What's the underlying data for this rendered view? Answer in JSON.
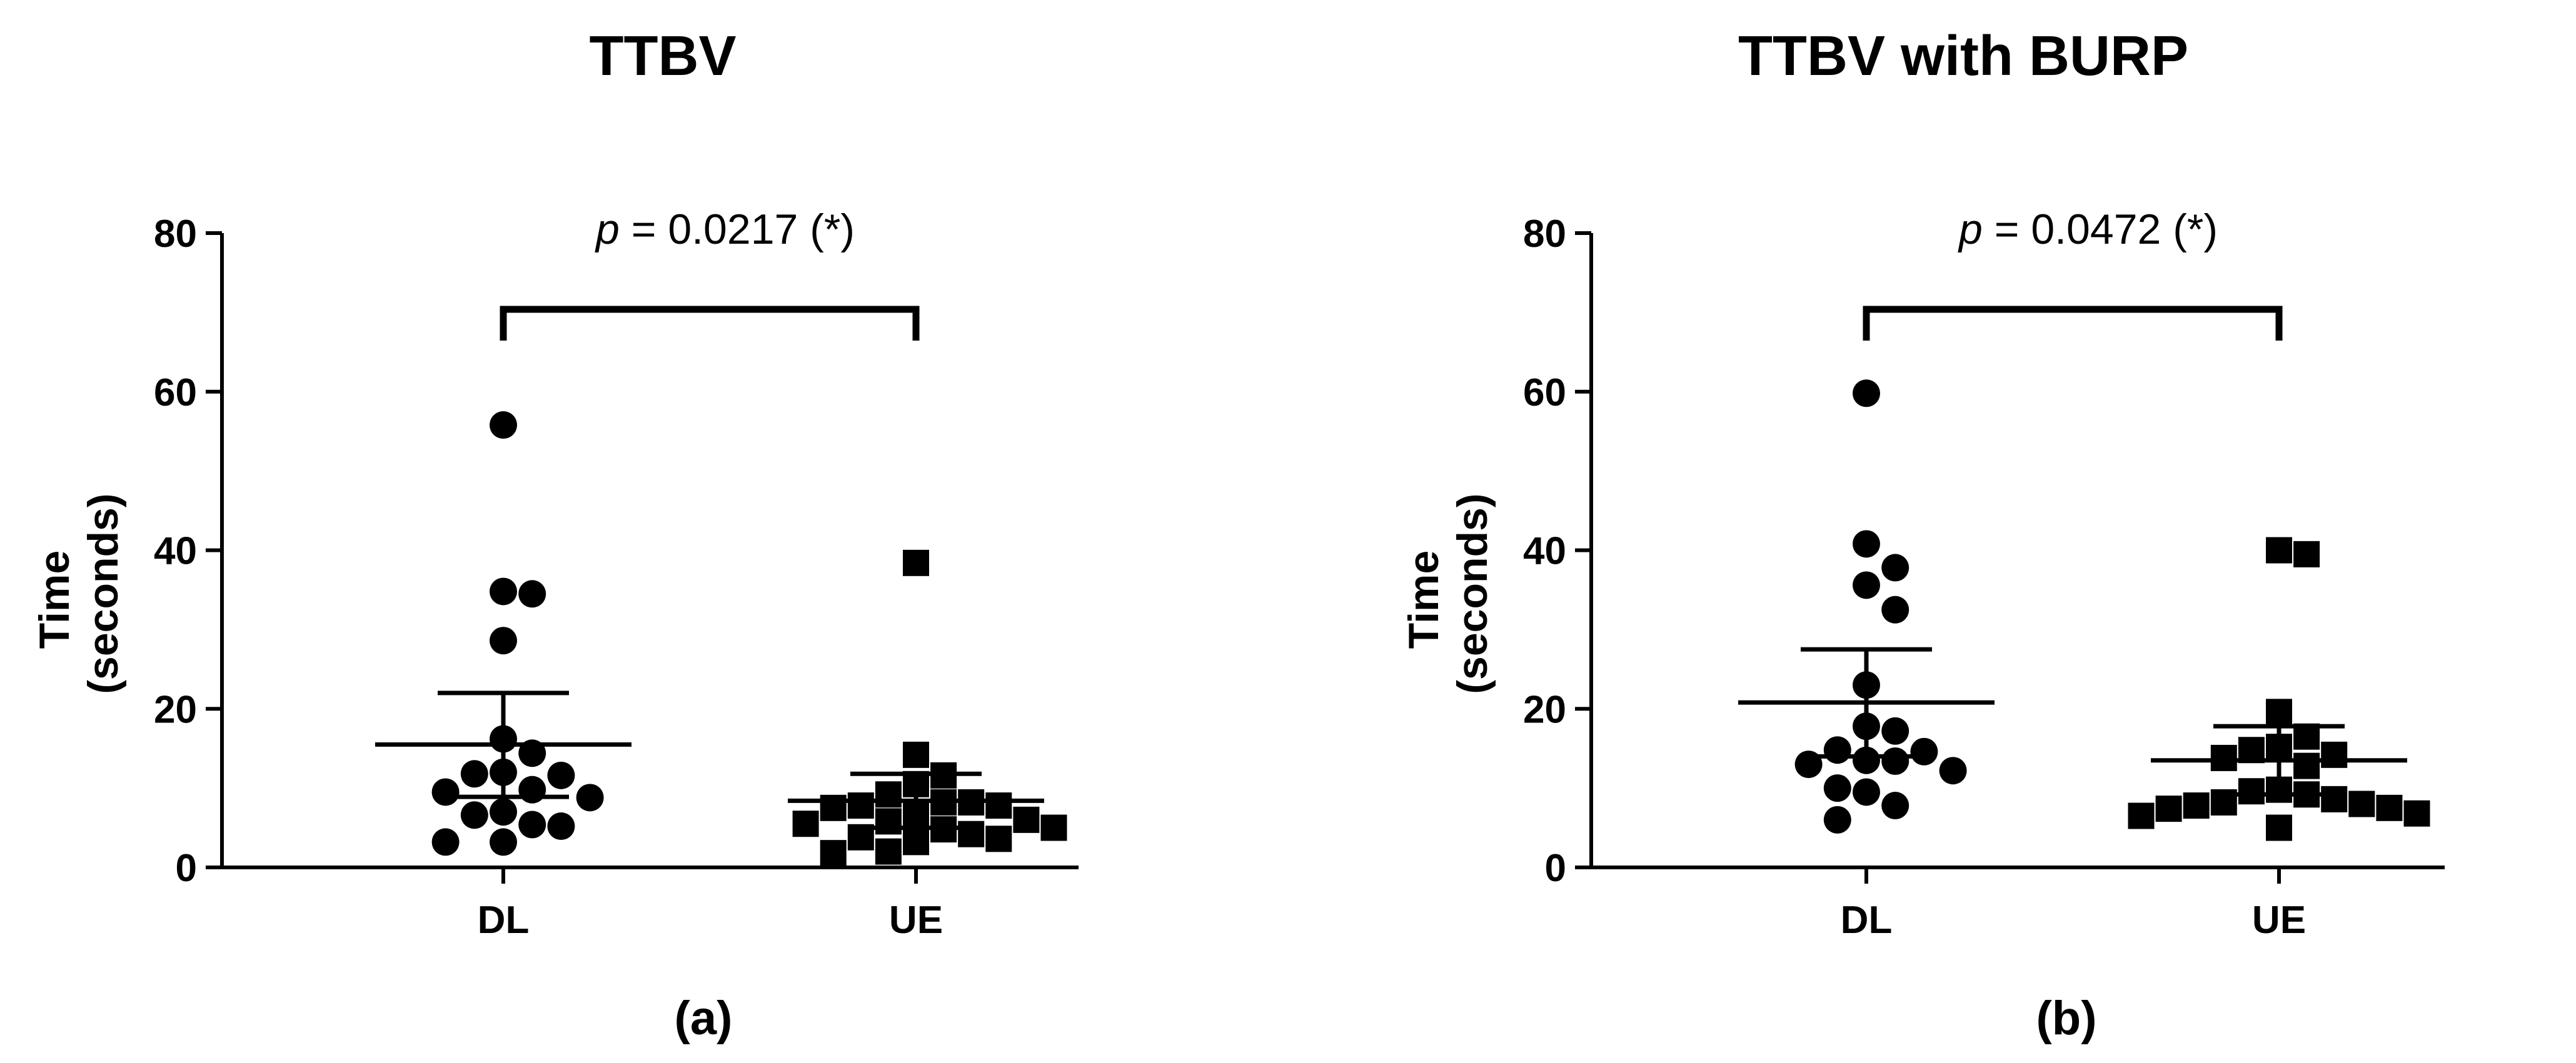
{
  "chart_data": [
    {
      "type": "scatter",
      "title": "TTBV",
      "subtitle": "(a)",
      "ylabel_line1": "Time",
      "ylabel_line2": "(seconds)",
      "categories": [
        "DL",
        "UE"
      ],
      "ylim": [
        0,
        80
      ],
      "yticks": [
        0,
        20,
        40,
        60,
        80
      ],
      "annotation": {
        "p_symbol": "p",
        "p_text": " = 0.0217 (*)"
      },
      "series": [
        {
          "category": "DL",
          "marker": "circle",
          "mean": 15.5,
          "error": [
            8.9,
            22.0
          ],
          "values": [
            55.8,
            34.8,
            34.5,
            28.6,
            16.2,
            14.4,
            12.0,
            11.6,
            11.8,
            9.8,
            9.5,
            8.8,
            7.0,
            6.6,
            5.4,
            5.2,
            3.2,
            3.2
          ]
        },
        {
          "category": "UE",
          "marker": "square",
          "mean": 8.4,
          "error": [
            5.0,
            11.8
          ],
          "values": [
            38.4,
            14.2,
            11.6,
            10.5,
            9.2,
            8.2,
            8.2,
            7.8,
            7.8,
            7.5,
            6.8,
            6.0,
            5.8,
            5.5,
            5.0,
            4.8,
            4.2,
            3.8,
            3.6,
            3.2,
            2.0,
            1.8
          ]
        }
      ]
    },
    {
      "type": "scatter",
      "title": "TTBV with BURP",
      "subtitle": "(b)",
      "ylabel_line1": "Time",
      "ylabel_line2": "(seconds)",
      "categories": [
        "DL",
        "UE"
      ],
      "ylim": [
        0,
        80
      ],
      "yticks": [
        0,
        20,
        40,
        60,
        80
      ],
      "annotation": {
        "p_symbol": "p",
        "p_text": " = 0.0472 (*)"
      },
      "series": [
        {
          "category": "DL",
          "marker": "circle",
          "mean": 20.8,
          "error": [
            14.0,
            27.5
          ],
          "values": [
            59.8,
            40.8,
            37.8,
            35.6,
            32.5,
            23.0,
            17.8,
            17.2,
            14.8,
            14.6,
            13.5,
            13.4,
            13.0,
            12.2,
            10.0,
            9.5,
            7.8,
            6.0
          ]
        },
        {
          "category": "UE",
          "marker": "square",
          "mean": 13.5,
          "error": [
            9.2,
            17.8
          ],
          "values": [
            40.0,
            39.5,
            19.6,
            16.5,
            15.2,
            14.8,
            14.2,
            13.8,
            12.8,
            9.8,
            9.6,
            9.2,
            8.6,
            8.2,
            8.0,
            7.8,
            7.5,
            7.4,
            6.8,
            6.5,
            5.0
          ]
        }
      ]
    }
  ]
}
